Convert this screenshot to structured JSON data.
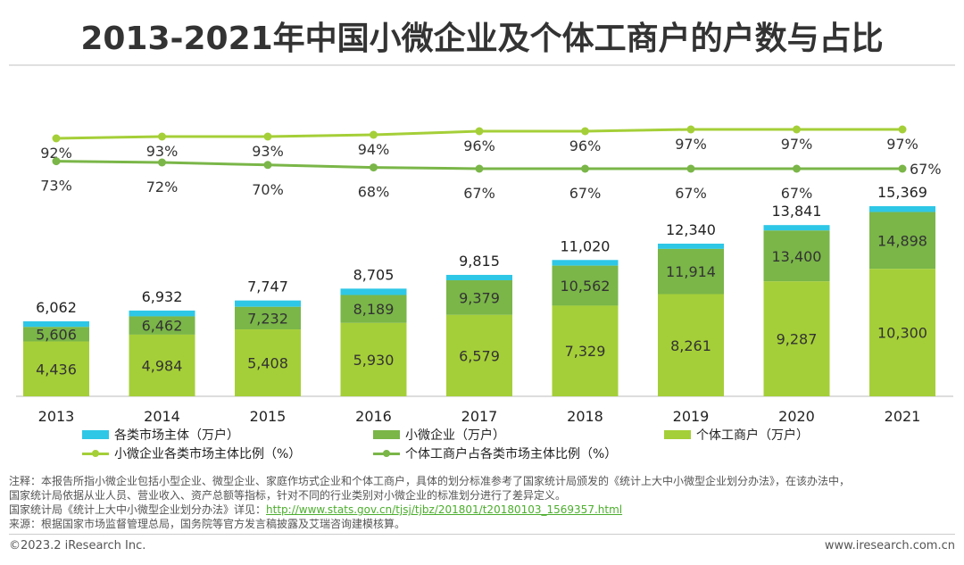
{
  "title": "2013-2021年中国小微企业及个体工商户的户数与占比",
  "chart_data": {
    "type": "bar",
    "subtype": "stacked bar with line overlay",
    "categories": [
      "2013",
      "2014",
      "2015",
      "2016",
      "2017",
      "2018",
      "2019",
      "2020",
      "2021"
    ],
    "series": [
      {
        "name": "个体工商户（万户）",
        "type": "bar",
        "color": "#a5cf38",
        "values": [
          4436,
          4984,
          5408,
          5930,
          6579,
          7329,
          8261,
          9287,
          10300
        ]
      },
      {
        "name": "小微企业（万户）",
        "type": "bar",
        "color": "#7ab648",
        "values": [
          5606,
          6462,
          7232,
          8189,
          9379,
          10562,
          11914,
          13400,
          14898
        ]
      },
      {
        "name": "各类市场主体（万户）",
        "type": "bar",
        "color": "#2ec7e6",
        "values": [
          6062,
          6932,
          7747,
          8705,
          9815,
          11020,
          12340,
          13841,
          15369
        ]
      },
      {
        "name": "小微企业各类市场主体比例（%）",
        "type": "line",
        "color": "#a5cf38",
        "values": [
          92,
          93,
          93,
          94,
          96,
          96,
          97,
          97,
          97
        ],
        "labels": [
          "92%",
          "93%",
          "93%",
          "94%",
          "96%",
          "96%",
          "97%",
          "97%",
          "97%"
        ]
      },
      {
        "name": "个体工商户占各类市场主体比例（%）",
        "type": "line",
        "color": "#7ab648",
        "values": [
          73,
          72,
          70,
          68,
          67,
          67,
          67,
          67,
          67
        ],
        "labels": [
          "73%",
          "72%",
          "70%",
          "68%",
          "67%",
          "67%",
          "67%",
          "67%",
          "67%"
        ]
      }
    ],
    "bar_value_labels": {
      "total": [
        "6,062",
        "6,932",
        "7,747",
        "8,705",
        "9,815",
        "11,020",
        "12,340",
        "13,841",
        "15,369"
      ],
      "small_micro": [
        "5,606",
        "6,462",
        "7,232",
        "8,189",
        "9,379",
        "10,562",
        "11,914",
        "13,400",
        "14,898"
      ],
      "individual": [
        "4,436",
        "4,984",
        "5,408",
        "5,930",
        "6,579",
        "7,329",
        "8,261",
        "9,287",
        "10,300"
      ]
    },
    "xlabel": "",
    "ylabel": "",
    "grid": false,
    "legend_position": "bottom"
  },
  "legend": {
    "total": "各类市场主体（万户）",
    "small_micro": "小微企业（万户）",
    "individual": "个体工商户（万户）",
    "small_micro_ratio": "小微企业各类市场主体比例（%）",
    "individual_ratio": "个体工商户占各类市场主体比例（%）"
  },
  "notes": {
    "line1": "注释：本报告所指小微企业包括小型企业、微型企业、家庭作坊式企业和个体工商户，具体的划分标准参考了国家统计局颁发的《统计上大中小微型企业划分办法》，在该办法中，",
    "line2": "国家统计局依据从业人员、营业收入、资产总额等指标，针对不同的行业类别对小微企业的标准划分进行了差异定义。",
    "line3_prefix": "国家统计局《统计上大中小微型企业划分办法》详见：",
    "line3_link": "http://www.stats.gov.cn/tjsj/tjbz/201801/t20180103_1569357.html",
    "line4": "来源：根据国家市场监督管理总局，国务院等官方发言稿披露及艾瑞咨询建模核算。"
  },
  "footer": {
    "copyright": "©2023.2 iResearch Inc.",
    "website": "www.iresearch.com.cn"
  }
}
